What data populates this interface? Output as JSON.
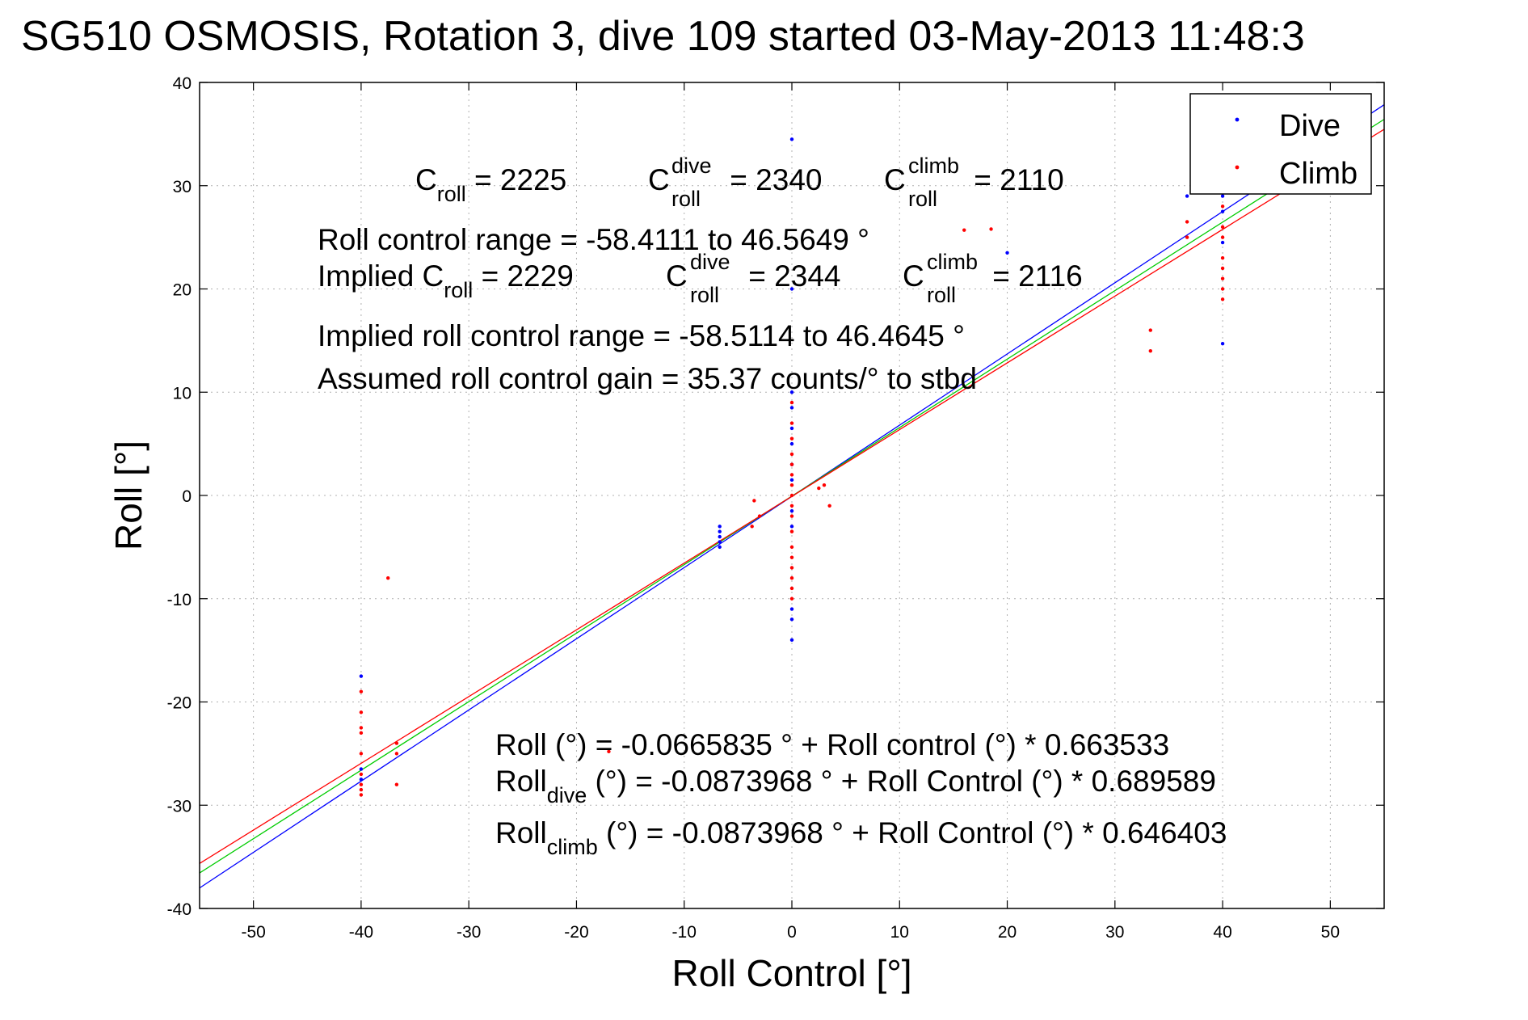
{
  "chart_data": {
    "type": "scatter",
    "title": "SG510 OSMOSIS, Rotation 3, dive 109 started 03-May-2013 11:48:3",
    "xlabel": "Roll Control [°]",
    "ylabel": "Roll [°]",
    "xlim": [
      -55,
      55
    ],
    "ylim": [
      -40,
      40
    ],
    "xticks": [
      -50,
      -40,
      -30,
      -20,
      -10,
      0,
      10,
      20,
      30,
      40,
      50
    ],
    "yticks": [
      -40,
      -30,
      -20,
      -10,
      0,
      10,
      20,
      30,
      40
    ],
    "grid": true,
    "legend": {
      "position": "top-right",
      "entries": [
        "Dive",
        "Climb"
      ]
    },
    "colors": {
      "dive": "#0000ff",
      "climb": "#ff0000",
      "combined_fit": "#00cc00"
    },
    "series": [
      {
        "name": "Dive",
        "color": "#0000ff",
        "points": [
          [
            -40.0,
            -17.5
          ],
          [
            -40.0,
            -26.5
          ],
          [
            -40.0,
            -27.5
          ],
          [
            -6.7,
            -3.0
          ],
          [
            -6.7,
            -3.5
          ],
          [
            -6.7,
            -4.0
          ],
          [
            -6.7,
            -4.5
          ],
          [
            -6.7,
            -5.0
          ],
          [
            0.0,
            34.5
          ],
          [
            0.0,
            20.0
          ],
          [
            0.0,
            10.0
          ],
          [
            0.0,
            8.5
          ],
          [
            0.0,
            6.5
          ],
          [
            0.0,
            5.0
          ],
          [
            0.0,
            3.0
          ],
          [
            0.0,
            1.5
          ],
          [
            0.0,
            -1.5
          ],
          [
            0.0,
            -3.0
          ],
          [
            0.0,
            -11.0
          ],
          [
            0.0,
            -12.0
          ],
          [
            0.0,
            -14.0
          ],
          [
            20.0,
            23.5
          ],
          [
            36.7,
            29.0
          ],
          [
            40.0,
            30.0
          ],
          [
            40.0,
            29.0
          ],
          [
            40.0,
            27.5
          ],
          [
            40.0,
            24.5
          ],
          [
            40.0,
            14.7
          ]
        ]
      },
      {
        "name": "Climb",
        "color": "#ff0000",
        "points": [
          [
            -40.0,
            -19.0
          ],
          [
            -40.0,
            -21.0
          ],
          [
            -40.0,
            -22.5
          ],
          [
            -40.0,
            -23.0
          ],
          [
            -40.0,
            -25.0
          ],
          [
            -40.0,
            -27.0
          ],
          [
            -40.0,
            -28.0
          ],
          [
            -40.0,
            -28.5
          ],
          [
            -40.0,
            -29.0
          ],
          [
            -36.7,
            -24.0
          ],
          [
            -36.7,
            -25.0
          ],
          [
            -36.7,
            -28.0
          ],
          [
            -37.5,
            -8.0
          ],
          [
            -17.0,
            -24.8
          ],
          [
            -3.5,
            -0.5
          ],
          [
            -3.7,
            -3.0
          ],
          [
            -3.0,
            -2.0
          ],
          [
            0.0,
            9.0
          ],
          [
            0.0,
            7.0
          ],
          [
            0.0,
            5.5
          ],
          [
            0.0,
            4.0
          ],
          [
            0.0,
            3.0
          ],
          [
            0.0,
            2.0
          ],
          [
            0.0,
            1.0
          ],
          [
            0.0,
            0.0
          ],
          [
            0.0,
            -1.0
          ],
          [
            0.0,
            -2.0
          ],
          [
            0.0,
            -3.5
          ],
          [
            0.0,
            -5.0
          ],
          [
            0.0,
            -6.0
          ],
          [
            0.0,
            -7.0
          ],
          [
            0.0,
            -8.0
          ],
          [
            0.0,
            -9.0
          ],
          [
            0.0,
            -10.0
          ],
          [
            3.0,
            1.0
          ],
          [
            3.5,
            -1.0
          ],
          [
            2.5,
            0.7
          ],
          [
            16.0,
            25.7
          ],
          [
            18.5,
            25.8
          ],
          [
            33.3,
            16.0
          ],
          [
            33.3,
            14.0
          ],
          [
            36.7,
            25.0
          ],
          [
            36.7,
            26.5
          ],
          [
            40.0,
            28.0
          ],
          [
            40.0,
            26.0
          ],
          [
            40.0,
            25.0
          ],
          [
            40.0,
            23.0
          ],
          [
            40.0,
            22.0
          ],
          [
            40.0,
            21.0
          ],
          [
            40.0,
            20.0
          ],
          [
            40.0,
            19.0
          ]
        ]
      }
    ],
    "fit_lines": [
      {
        "color": "#0000ff",
        "intercept": -0.0873968,
        "slope": 0.689589
      },
      {
        "color": "#00cc00",
        "intercept": -0.0665835,
        "slope": 0.663533
      },
      {
        "color": "#ff0000",
        "intercept": -0.0873968,
        "slope": 0.646403
      }
    ],
    "annotations": {
      "croll_row": {
        "c1": "C",
        "c1_sub": "roll",
        "c1_val": " = 2225",
        "c2": "C",
        "c2_sup": "dive",
        "c2_sub": "roll",
        "c2_val": " = 2340",
        "c3": "C",
        "c3_sup": "climb",
        "c3_sub": "roll",
        "c3_val": " = 2110"
      },
      "range_line": "Roll control range = -58.4111 to 46.5649 °",
      "implied_row": {
        "c1": "Implied C",
        "c1_sub": "roll",
        "c1_val": " = 2229",
        "c2": "C",
        "c2_sup": "dive",
        "c2_sub": "roll",
        "c2_val": " = 2344",
        "c3": "C",
        "c3_sup": "climb",
        "c3_sub": "roll",
        "c3_val": " = 2116"
      },
      "implied_range_line": "Implied roll control range = -58.5114 to 46.4645 °",
      "gain_line": "Assumed roll control gain = 35.37 counts/° to stbd",
      "fit_all": "Roll (°) = -0.0665835 ° + Roll control (°) * 0.663533",
      "fit_dive": {
        "main": "Roll",
        "sub": "dive",
        "rest": " (°) = -0.0873968 ° + Roll Control (°) * 0.689589"
      },
      "fit_climb": {
        "main": "Roll",
        "sub": "climb",
        "rest": " (°) = -0.0873968 ° + Roll Control (°) * 0.646403"
      }
    }
  }
}
